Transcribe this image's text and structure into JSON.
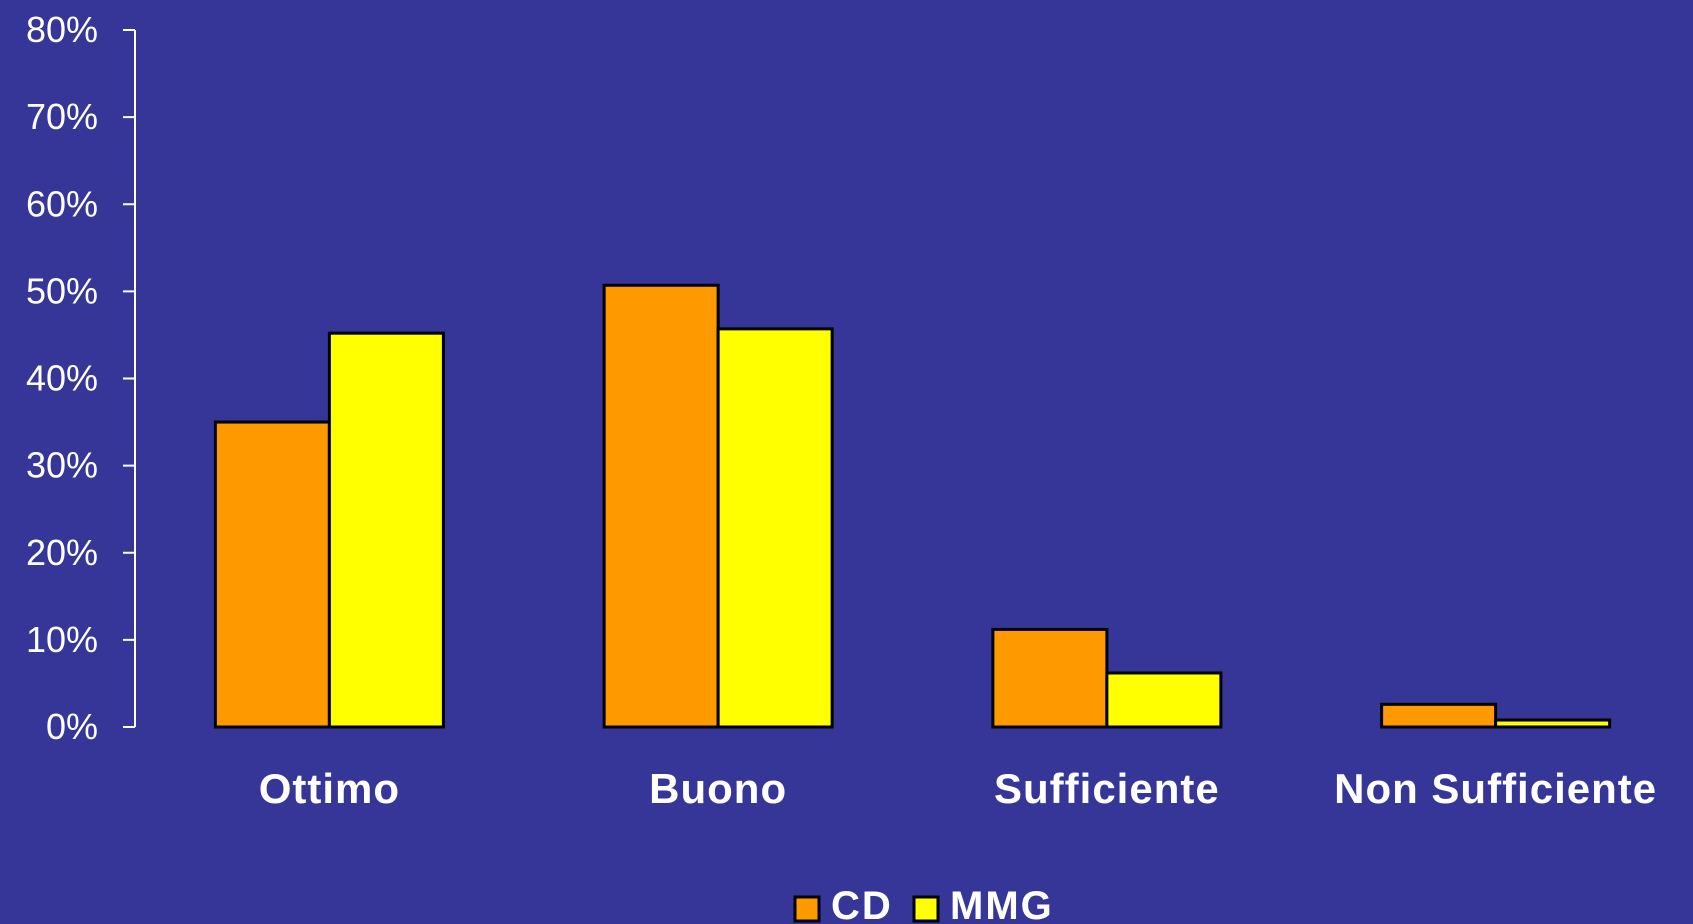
{
  "chart_data": {
    "type": "bar",
    "categories": [
      "Ottimo",
      "Buono",
      "Sufficiente",
      "Non Sufficiente"
    ],
    "series": [
      {
        "name": "CD",
        "values": [
          35,
          50.7,
          11.2,
          2.6
        ],
        "color": "#ff9900"
      },
      {
        "name": "MMG",
        "values": [
          45.2,
          45.7,
          6.2,
          0.8
        ],
        "color": "#ffff00"
      }
    ],
    "y_ticks": [
      "0%",
      "10%",
      "20%",
      "30%",
      "40%",
      "50%",
      "60%",
      "70%",
      "80%"
    ],
    "ylim": [
      0,
      80
    ],
    "grid": false,
    "legend": {
      "placement": "bottom",
      "entries": [
        "CD",
        "MMG"
      ]
    },
    "title": "",
    "xlabel": "",
    "ylabel": ""
  },
  "colors": {
    "background": "#363698",
    "axis": "#ffffff",
    "bar_outline": "#000000"
  }
}
